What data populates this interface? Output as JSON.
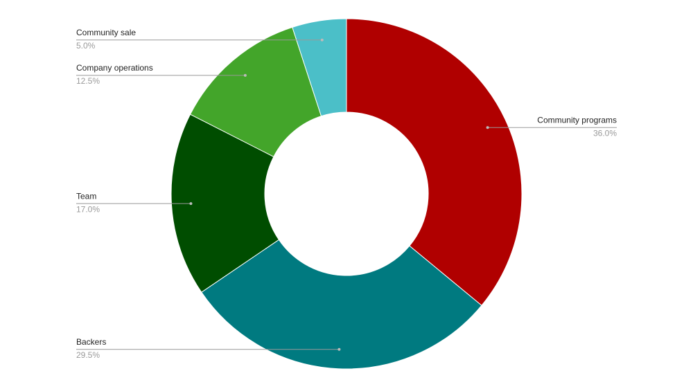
{
  "chart_data": {
    "type": "donut",
    "categories": [
      "Community programs",
      "Backers",
      "Team",
      "Company operations",
      "Community sale"
    ],
    "values": [
      36.0,
      29.5,
      17.0,
      12.5,
      5.0
    ],
    "value_labels": [
      "36.0%",
      "29.5%",
      "17.0%",
      "12.5%",
      "5.0%"
    ],
    "colors": [
      "#b00000",
      "#007a80",
      "#004d00",
      "#43a52a",
      "#4bbfc8"
    ]
  }
}
